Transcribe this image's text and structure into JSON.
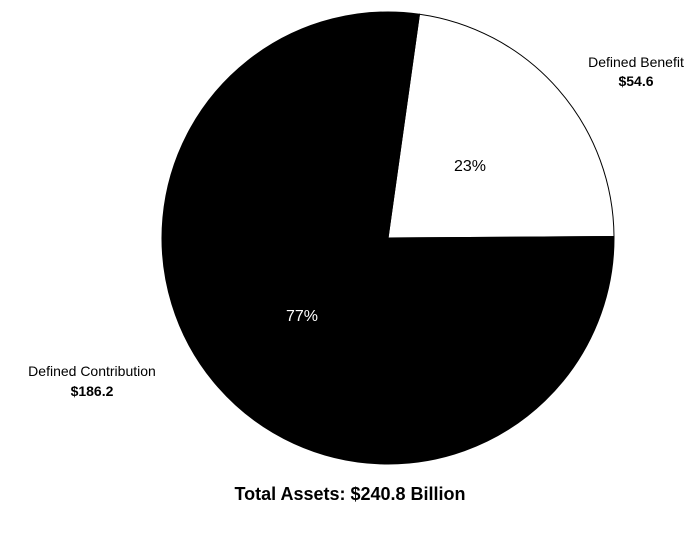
{
  "chart_data": {
    "type": "pie",
    "categories": [
      "Defined Benefit",
      "Defined Contribution"
    ],
    "values": [
      54.6,
      186.2
    ],
    "value_labels": [
      "$54.6",
      "$186.2"
    ],
    "percent_labels": [
      "23%",
      "77%"
    ],
    "colors": [
      "#ffffff",
      "#000000"
    ],
    "total_label": "Total Assets:  $240.8 Billion"
  }
}
